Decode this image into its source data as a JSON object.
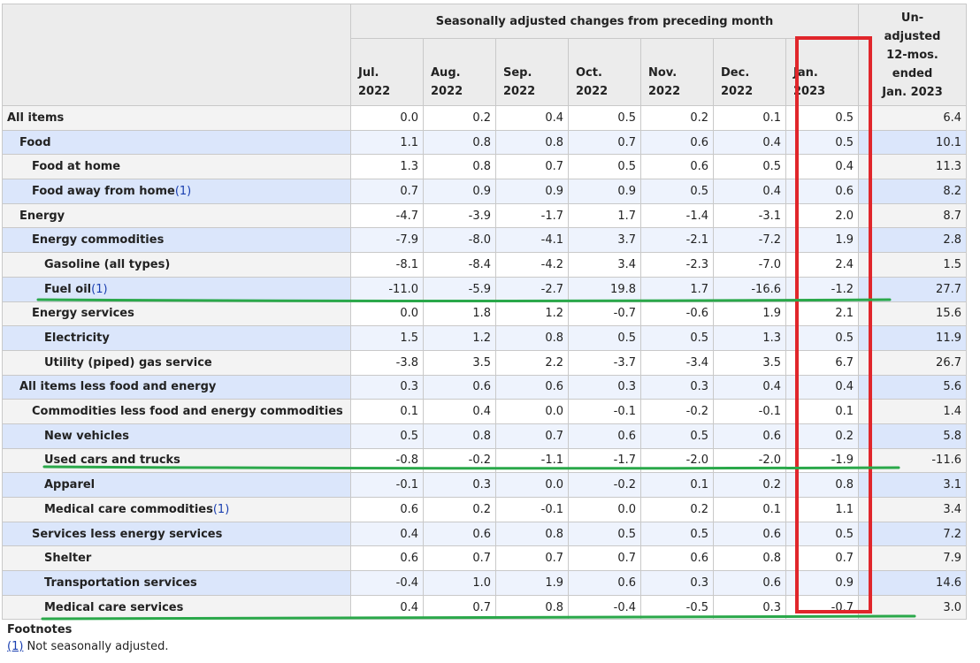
{
  "header": {
    "group_label": "Seasonally adjusted changes from preceding month",
    "months": [
      {
        "mon": "Jul.",
        "year": "2022"
      },
      {
        "mon": "Aug.",
        "year": "2022"
      },
      {
        "mon": "Sep.",
        "year": "2022"
      },
      {
        "mon": "Oct.",
        "year": "2022"
      },
      {
        "mon": "Nov.",
        "year": "2022"
      },
      {
        "mon": "Dec.",
        "year": "2022"
      },
      {
        "mon": "Jan.",
        "year": "2023"
      }
    ],
    "unadjusted_lines": [
      "Un-",
      "adjusted",
      "12-mos.",
      "ended",
      "Jan. 2023"
    ]
  },
  "rows": [
    {
      "label": "All items",
      "note": "",
      "indent": 0,
      "values": [
        "0.0",
        "0.2",
        "0.4",
        "0.5",
        "0.2",
        "0.1",
        "0.5",
        "6.4"
      ]
    },
    {
      "label": "Food",
      "note": "",
      "indent": 1,
      "values": [
        "1.1",
        "0.8",
        "0.8",
        "0.7",
        "0.6",
        "0.4",
        "0.5",
        "10.1"
      ]
    },
    {
      "label": "Food at home",
      "note": "",
      "indent": 2,
      "values": [
        "1.3",
        "0.8",
        "0.7",
        "0.5",
        "0.6",
        "0.5",
        "0.4",
        "11.3"
      ]
    },
    {
      "label": "Food away from home",
      "note": "(1)",
      "indent": 2,
      "values": [
        "0.7",
        "0.9",
        "0.9",
        "0.9",
        "0.5",
        "0.4",
        "0.6",
        "8.2"
      ]
    },
    {
      "label": "Energy",
      "note": "",
      "indent": 1,
      "values": [
        "-4.7",
        "-3.9",
        "-1.7",
        "1.7",
        "-1.4",
        "-3.1",
        "2.0",
        "8.7"
      ]
    },
    {
      "label": "Energy commodities",
      "note": "",
      "indent": 2,
      "values": [
        "-7.9",
        "-8.0",
        "-4.1",
        "3.7",
        "-2.1",
        "-7.2",
        "1.9",
        "2.8"
      ]
    },
    {
      "label": "Gasoline (all types)",
      "note": "",
      "indent": 3,
      "values": [
        "-8.1",
        "-8.4",
        "-4.2",
        "3.4",
        "-2.3",
        "-7.0",
        "2.4",
        "1.5"
      ]
    },
    {
      "label": "Fuel oil",
      "note": "(1)",
      "indent": 3,
      "values": [
        "-11.0",
        "-5.9",
        "-2.7",
        "19.8",
        "1.7",
        "-16.6",
        "-1.2",
        "27.7"
      ]
    },
    {
      "label": "Energy services",
      "note": "",
      "indent": 2,
      "values": [
        "0.0",
        "1.8",
        "1.2",
        "-0.7",
        "-0.6",
        "1.9",
        "2.1",
        "15.6"
      ]
    },
    {
      "label": "Electricity",
      "note": "",
      "indent": 3,
      "values": [
        "1.5",
        "1.2",
        "0.8",
        "0.5",
        "0.5",
        "1.3",
        "0.5",
        "11.9"
      ]
    },
    {
      "label": "Utility (piped) gas service",
      "note": "",
      "indent": 3,
      "values": [
        "-3.8",
        "3.5",
        "2.2",
        "-3.7",
        "-3.4",
        "3.5",
        "6.7",
        "26.7"
      ]
    },
    {
      "label": "All items less food and energy",
      "note": "",
      "indent": 1,
      "values": [
        "0.3",
        "0.6",
        "0.6",
        "0.3",
        "0.3",
        "0.4",
        "0.4",
        "5.6"
      ]
    },
    {
      "label": "Commodities less food and energy commodities",
      "note": "",
      "indent": 2,
      "values": [
        "0.1",
        "0.4",
        "0.0",
        "-0.1",
        "-0.2",
        "-0.1",
        "0.1",
        "1.4"
      ]
    },
    {
      "label": "New vehicles",
      "note": "",
      "indent": 3,
      "values": [
        "0.5",
        "0.8",
        "0.7",
        "0.6",
        "0.5",
        "0.6",
        "0.2",
        "5.8"
      ]
    },
    {
      "label": "Used cars and trucks",
      "note": "",
      "indent": 3,
      "values": [
        "-0.8",
        "-0.2",
        "-1.1",
        "-1.7",
        "-2.0",
        "-2.0",
        "-1.9",
        "-11.6"
      ]
    },
    {
      "label": "Apparel",
      "note": "",
      "indent": 3,
      "values": [
        "-0.1",
        "0.3",
        "0.0",
        "-0.2",
        "0.1",
        "0.2",
        "0.8",
        "3.1"
      ]
    },
    {
      "label": "Medical care commodities",
      "note": "(1)",
      "indent": 3,
      "values": [
        "0.6",
        "0.2",
        "-0.1",
        "0.0",
        "0.2",
        "0.1",
        "1.1",
        "3.4"
      ]
    },
    {
      "label": "Services less energy services",
      "note": "",
      "indent": 2,
      "values": [
        "0.4",
        "0.6",
        "0.8",
        "0.5",
        "0.5",
        "0.6",
        "0.5",
        "7.2"
      ]
    },
    {
      "label": "Shelter",
      "note": "",
      "indent": 3,
      "values": [
        "0.6",
        "0.7",
        "0.7",
        "0.7",
        "0.6",
        "0.8",
        "0.7",
        "7.9"
      ]
    },
    {
      "label": "Transportation services",
      "note": "",
      "indent": 3,
      "values": [
        "-0.4",
        "1.0",
        "1.9",
        "0.6",
        "0.3",
        "0.6",
        "0.9",
        "14.6"
      ]
    },
    {
      "label": "Medical care services",
      "note": "",
      "indent": 3,
      "values": [
        "0.4",
        "0.7",
        "0.8",
        "-0.4",
        "-0.5",
        "0.3",
        "-0.7",
        "3.0"
      ]
    }
  ],
  "footnotes": {
    "title": "Footnotes",
    "marker": "(1)",
    "text": " Not seasonally adjusted."
  },
  "annotations": {
    "highlight_color": "#e0262b",
    "underline_color": "#2aa84a"
  }
}
